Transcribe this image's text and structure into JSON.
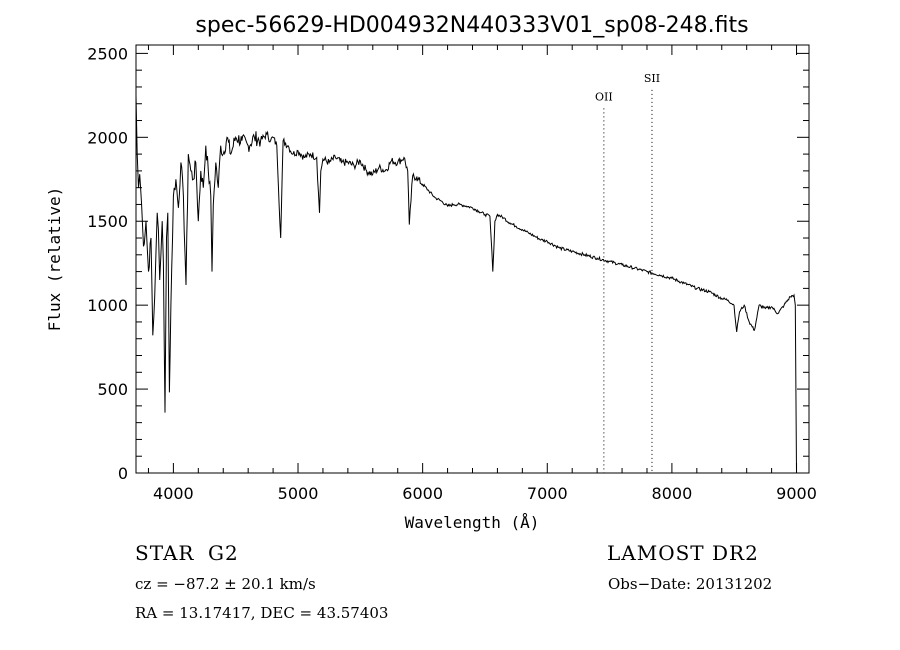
{
  "chart_data": {
    "type": "line",
    "title": "spec-56629-HD004932N440333V01_sp08-248.fits",
    "xlabel": "Wavelength (Å)",
    "ylabel": "Flux (relative)",
    "xlim": [
      3700,
      9100
    ],
    "ylim": [
      0,
      2550
    ],
    "xticks": [
      "4000",
      "5000",
      "6000",
      "7000",
      "8000",
      "9000"
    ],
    "yticks": [
      "0",
      "500",
      "1000",
      "1500",
      "2000",
      "2500"
    ],
    "grid": false,
    "series": [
      {
        "x": [
          3700,
          3710,
          3720,
          3730,
          3745,
          3760,
          3780,
          3800,
          3820,
          3835,
          3850,
          3860,
          3870,
          3880,
          3890,
          3900,
          3910,
          3920,
          3933,
          3945,
          3955,
          3968,
          3980,
          4000,
          4020,
          4040,
          4060,
          4080,
          4101,
          4120,
          4140,
          4160,
          4180,
          4200,
          4220,
          4240,
          4260,
          4280,
          4300,
          4310,
          4320,
          4340,
          4360,
          4380,
          4400,
          4430,
          4460,
          4500,
          4550,
          4600,
          4650,
          4700,
          4750,
          4780,
          4800,
          4830,
          4861,
          4880,
          4920,
          4960,
          5000,
          5050,
          5100,
          5150,
          5172,
          5183,
          5200,
          5250,
          5300,
          5350,
          5400,
          5450,
          5500,
          5550,
          5600,
          5650,
          5700,
          5750,
          5800,
          5850,
          5880,
          5893,
          5920,
          5950,
          6000,
          6050,
          6100,
          6150,
          6200,
          6250,
          6300,
          6350,
          6400,
          6450,
          6500,
          6540,
          6563,
          6580,
          6600,
          6650,
          6700,
          6750,
          6800,
          6850,
          6900,
          6950,
          7000,
          7100,
          7200,
          7300,
          7400,
          7500,
          7600,
          7700,
          7800,
          7900,
          8000,
          8100,
          8200,
          8300,
          8400,
          8450,
          8498,
          8520,
          8542,
          8580,
          8620,
          8662,
          8700,
          8750,
          8800,
          8850,
          8900,
          8950,
          8980,
          8990,
          9000
        ],
        "y": [
          2250,
          1900,
          1700,
          1780,
          1600,
          1350,
          1500,
          1200,
          1400,
          820,
          1050,
          1300,
          1550,
          1450,
          1150,
          1300,
          1500,
          1250,
          360,
          1400,
          1550,
          480,
          1000,
          1650,
          1750,
          1580,
          1850,
          1650,
          1120,
          1900,
          1800,
          1750,
          1850,
          1500,
          1800,
          1700,
          1950,
          1800,
          1650,
          1200,
          1600,
          1850,
          1700,
          1950,
          1900,
          2000,
          1900,
          2000,
          1980,
          1950,
          2000,
          1980,
          2020,
          1980,
          2000,
          1950,
          1400,
          1980,
          1950,
          1900,
          1920,
          1880,
          1900,
          1880,
          1550,
          1800,
          1870,
          1850,
          1880,
          1850,
          1850,
          1830,
          1860,
          1800,
          1780,
          1820,
          1800,
          1860,
          1850,
          1880,
          1800,
          1480,
          1770,
          1760,
          1720,
          1680,
          1640,
          1620,
          1590,
          1600,
          1600,
          1590,
          1580,
          1560,
          1540,
          1530,
          1200,
          1500,
          1540,
          1520,
          1490,
          1470,
          1450,
          1430,
          1410,
          1390,
          1380,
          1340,
          1320,
          1300,
          1280,
          1260,
          1240,
          1220,
          1200,
          1180,
          1160,
          1130,
          1100,
          1080,
          1040,
          1030,
          1000,
          840,
          960,
          1000,
          900,
          850,
          1000,
          980,
          990,
          950,
          1000,
          1050,
          1060,
          1000,
          0
        ]
      }
    ],
    "markers": [
      {
        "label": "OII",
        "x": 7454,
        "label_y": 2220
      },
      {
        "label": "SII",
        "x": 7840,
        "label_y": 2330
      }
    ]
  },
  "info": {
    "object_type": "STAR",
    "spectral_class": "G2",
    "survey": "LAMOST DR2",
    "cz": "cz = −87.2 ± 20.1 km/s",
    "obs_date": "Obs−Date: 20131202",
    "coords": "RA =  13.17417, DEC =  43.57403"
  }
}
